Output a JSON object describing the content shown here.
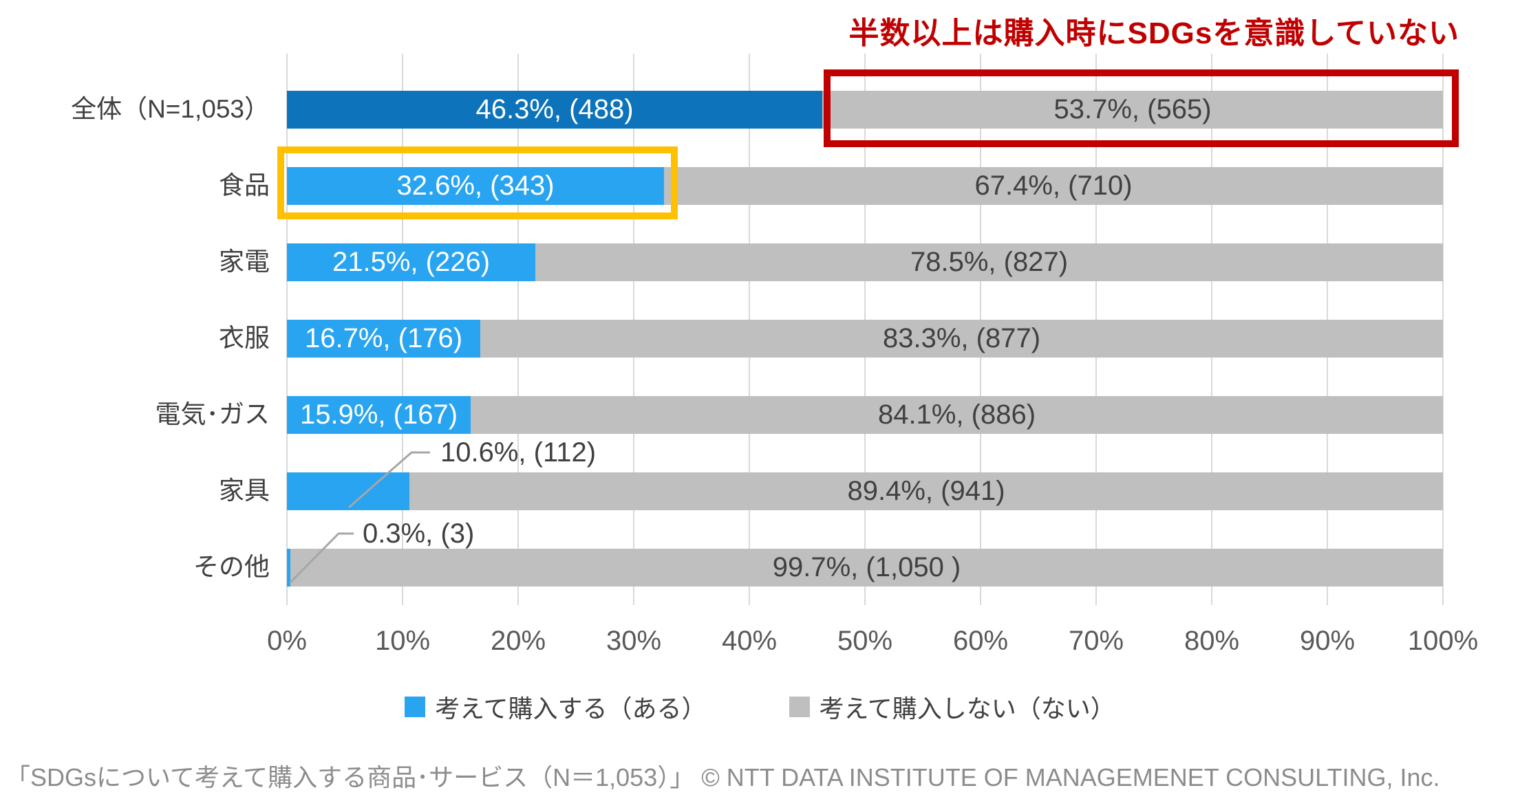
{
  "title": {
    "text": "半数以上は購入時にSDGsを意識していない"
  },
  "chart_data": {
    "type": "bar",
    "orientation": "horizontal",
    "stacked": true,
    "grid": true,
    "xlim": [
      0,
      100
    ],
    "x_ticks": [
      "0%",
      "10%",
      "20%",
      "30%",
      "40%",
      "50%",
      "60%",
      "70%",
      "80%",
      "90%",
      "100%"
    ],
    "legend_position": "bottom",
    "series_names": [
      "考えて購入する（ある）",
      "考えて購入しない（ない）"
    ],
    "rows": [
      {
        "category": "全体（N=1,053）",
        "yes_pct": 46.3,
        "yes_n": 488,
        "no_pct": 53.7,
        "no_n": 565,
        "yes_label": "46.3%, (488)",
        "no_label": "53.7%, (565)",
        "yes_label_placement": "inside",
        "yes_color_key": "yes_total"
      },
      {
        "category": "食品",
        "yes_pct": 32.6,
        "yes_n": 343,
        "no_pct": 67.4,
        "no_n": 710,
        "yes_label": "32.6%, (343)",
        "no_label": "67.4%, (710)",
        "yes_label_placement": "inside",
        "yes_color_key": "yes"
      },
      {
        "category": "家電",
        "yes_pct": 21.5,
        "yes_n": 226,
        "no_pct": 78.5,
        "no_n": 827,
        "yes_label": "21.5%, (226)",
        "no_label": "78.5%, (827)",
        "yes_label_placement": "inside",
        "yes_color_key": "yes"
      },
      {
        "category": "衣服",
        "yes_pct": 16.7,
        "yes_n": 176,
        "no_pct": 83.3,
        "no_n": 877,
        "yes_label": "16.7%, (176)",
        "no_label": "83.3%, (877)",
        "yes_label_placement": "inside",
        "yes_color_key": "yes"
      },
      {
        "category": "電気･ガス",
        "yes_pct": 15.9,
        "yes_n": 167,
        "no_pct": 84.1,
        "no_n": 886,
        "yes_label": "15.9%, (167)",
        "no_label": "84.1%, (886)",
        "yes_label_placement": "inside",
        "yes_color_key": "yes"
      },
      {
        "category": "家具",
        "yes_pct": 10.6,
        "yes_n": 112,
        "no_pct": 89.4,
        "no_n": 941,
        "yes_label": "10.6%, (112)",
        "no_label": "89.4%, (941)",
        "yes_label_placement": "callout",
        "yes_color_key": "yes"
      },
      {
        "category": "その他",
        "yes_pct": 0.3,
        "yes_n": 3,
        "no_pct": 99.7,
        "no_n": 1050,
        "yes_label": "0.3%, (3)",
        "no_label": "99.7%, (1,050 )",
        "yes_label_placement": "callout",
        "yes_color_key": "yes"
      }
    ]
  },
  "legend": {
    "items": [
      {
        "label": "考えて購入する（ある）",
        "color_key": "yes"
      },
      {
        "label": "考えて購入しない（ない）",
        "color_key": "no"
      }
    ]
  },
  "annotations": {
    "red_box_target": "全体 53.7%, (565)",
    "yellow_box_target": "食品 32.6%, (343)",
    "callouts": [
      {
        "label": "10.6%, (112)"
      },
      {
        "label": "0.3%, (3)"
      }
    ]
  },
  "footer": {
    "text": "「SDGsについて考えて購入する商品･サービス（N＝1,053）」 © NTT DATA INSTITUTE OF MANAGEMENET CONSULTING, Inc."
  },
  "colors": {
    "yes": "#29A4F0",
    "yes_total": "#0D73BA",
    "no": "#BFBFBF",
    "grid": "#D9D9D9",
    "title": "#C00000",
    "red_box": "#C00000",
    "yellow_box": "#FFC000",
    "label_on_yes": "#FFFFFF",
    "label_on_no": "#404040",
    "category_label": "#404040",
    "axis_label": "#595959",
    "legend_label": "#404040",
    "callout_label": "#404040",
    "leader_line": "#A6A6A6",
    "footer_text": "#8C8C8C"
  }
}
